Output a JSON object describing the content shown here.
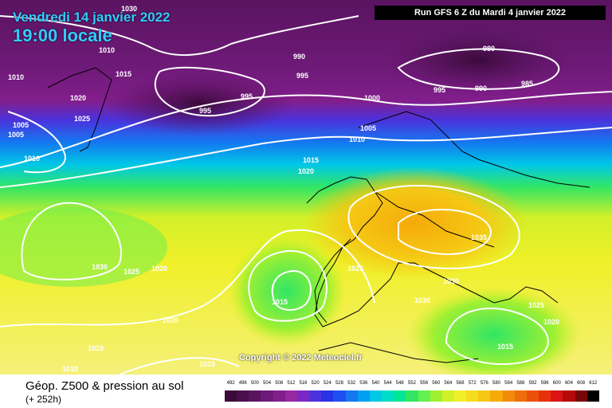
{
  "header": {
    "valid_date": "Vendredi 14 janvier 2022",
    "valid_time": "19:00 locale",
    "run": "Run GFS 6 Z du Mardi 4 janvier 2022"
  },
  "copyright": "Copyright © 2022 Meteociel.fr",
  "footer": {
    "title": "Géop. Z500 & pression au sol",
    "subtitle": "(+ 252h)"
  },
  "legend": {
    "ticks": [
      "492",
      "496",
      "500",
      "504",
      "508",
      "512",
      "516",
      "520",
      "524",
      "528",
      "532",
      "536",
      "540",
      "544",
      "548",
      "552",
      "556",
      "560",
      "564",
      "568",
      "572",
      "576",
      "580",
      "584",
      "588",
      "592",
      "596",
      "600",
      "604",
      "608",
      "612"
    ],
    "colors": [
      "#3a0a3a",
      "#4b0f4b",
      "#5a1460",
      "#6e1a78",
      "#821e8c",
      "#9628a0",
      "#7a28c8",
      "#4b32dc",
      "#2832e6",
      "#1e50f0",
      "#1478f0",
      "#00a0f0",
      "#00c8e6",
      "#00dcc8",
      "#00e696",
      "#32e664",
      "#64f050",
      "#a0f032",
      "#d2f028",
      "#f0f028",
      "#f5dc1e",
      "#f5c814",
      "#f5aa0a",
      "#f08c0a",
      "#f06e0a",
      "#eb500a",
      "#e6320a",
      "#dc1414",
      "#b40a0a",
      "#780505",
      "#000000"
    ]
  },
  "isobars": [
    {
      "text": "1030",
      "x": "left"
    },
    "1030",
    "1010",
    "1015",
    "990",
    "995",
    "980",
    "985",
    "990",
    "995",
    "1000",
    "995",
    "995",
    "1020",
    "1025",
    "1010",
    "1005",
    "1005",
    "1010",
    "1005",
    "1010",
    "1015",
    "1020",
    "1035",
    "1030",
    "1030",
    "1025",
    "1025",
    "1020",
    "1015",
    "1020",
    "1025",
    "1030",
    "1020",
    "1015",
    "1015",
    "1010",
    "1015",
    "1015",
    "1020"
  ]
}
